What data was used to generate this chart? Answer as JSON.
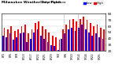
{
  "title": "Milwaukee Weather Dew Point",
  "subtitle": "Daily High/Low",
  "high_values": [
    58,
    55,
    60,
    52,
    55,
    60,
    62,
    48,
    55,
    65,
    68,
    60,
    55,
    50,
    45,
    42,
    38,
    55,
    62,
    70,
    72,
    68,
    72,
    75,
    70,
    65,
    60,
    62,
    58,
    55
  ],
  "low_values": [
    45,
    42,
    48,
    38,
    42,
    48,
    50,
    35,
    40,
    50,
    55,
    45,
    40,
    35,
    30,
    28,
    22,
    40,
    48,
    55,
    58,
    52,
    58,
    62,
    55,
    50,
    45,
    48,
    42,
    40
  ],
  "x_tick_indices": [
    0,
    2,
    4,
    6,
    8,
    10,
    12,
    14,
    16,
    18,
    20,
    22,
    24,
    26,
    28
  ],
  "x_tick_labels": [
    "8/1",
    "8/5",
    "8/9",
    "8/13",
    "8/17",
    "8/21",
    "8/25",
    "8/29",
    "9/2",
    "9/6",
    "9/10",
    "9/14",
    "9/18",
    "9/22",
    "9/26"
  ],
  "ylim": [
    20,
    80
  ],
  "yticks": [
    20,
    30,
    40,
    50,
    60,
    70,
    80
  ],
  "high_color": "#ff0000",
  "low_color": "#0000ff",
  "bg_color": "#ffffff",
  "plot_bg_color": "#ffffff",
  "grid_color": "#cccccc",
  "bar_width": 0.42,
  "dashed_vlines": [
    17.5,
    21.5
  ],
  "legend_high": "High",
  "legend_low": "Low"
}
